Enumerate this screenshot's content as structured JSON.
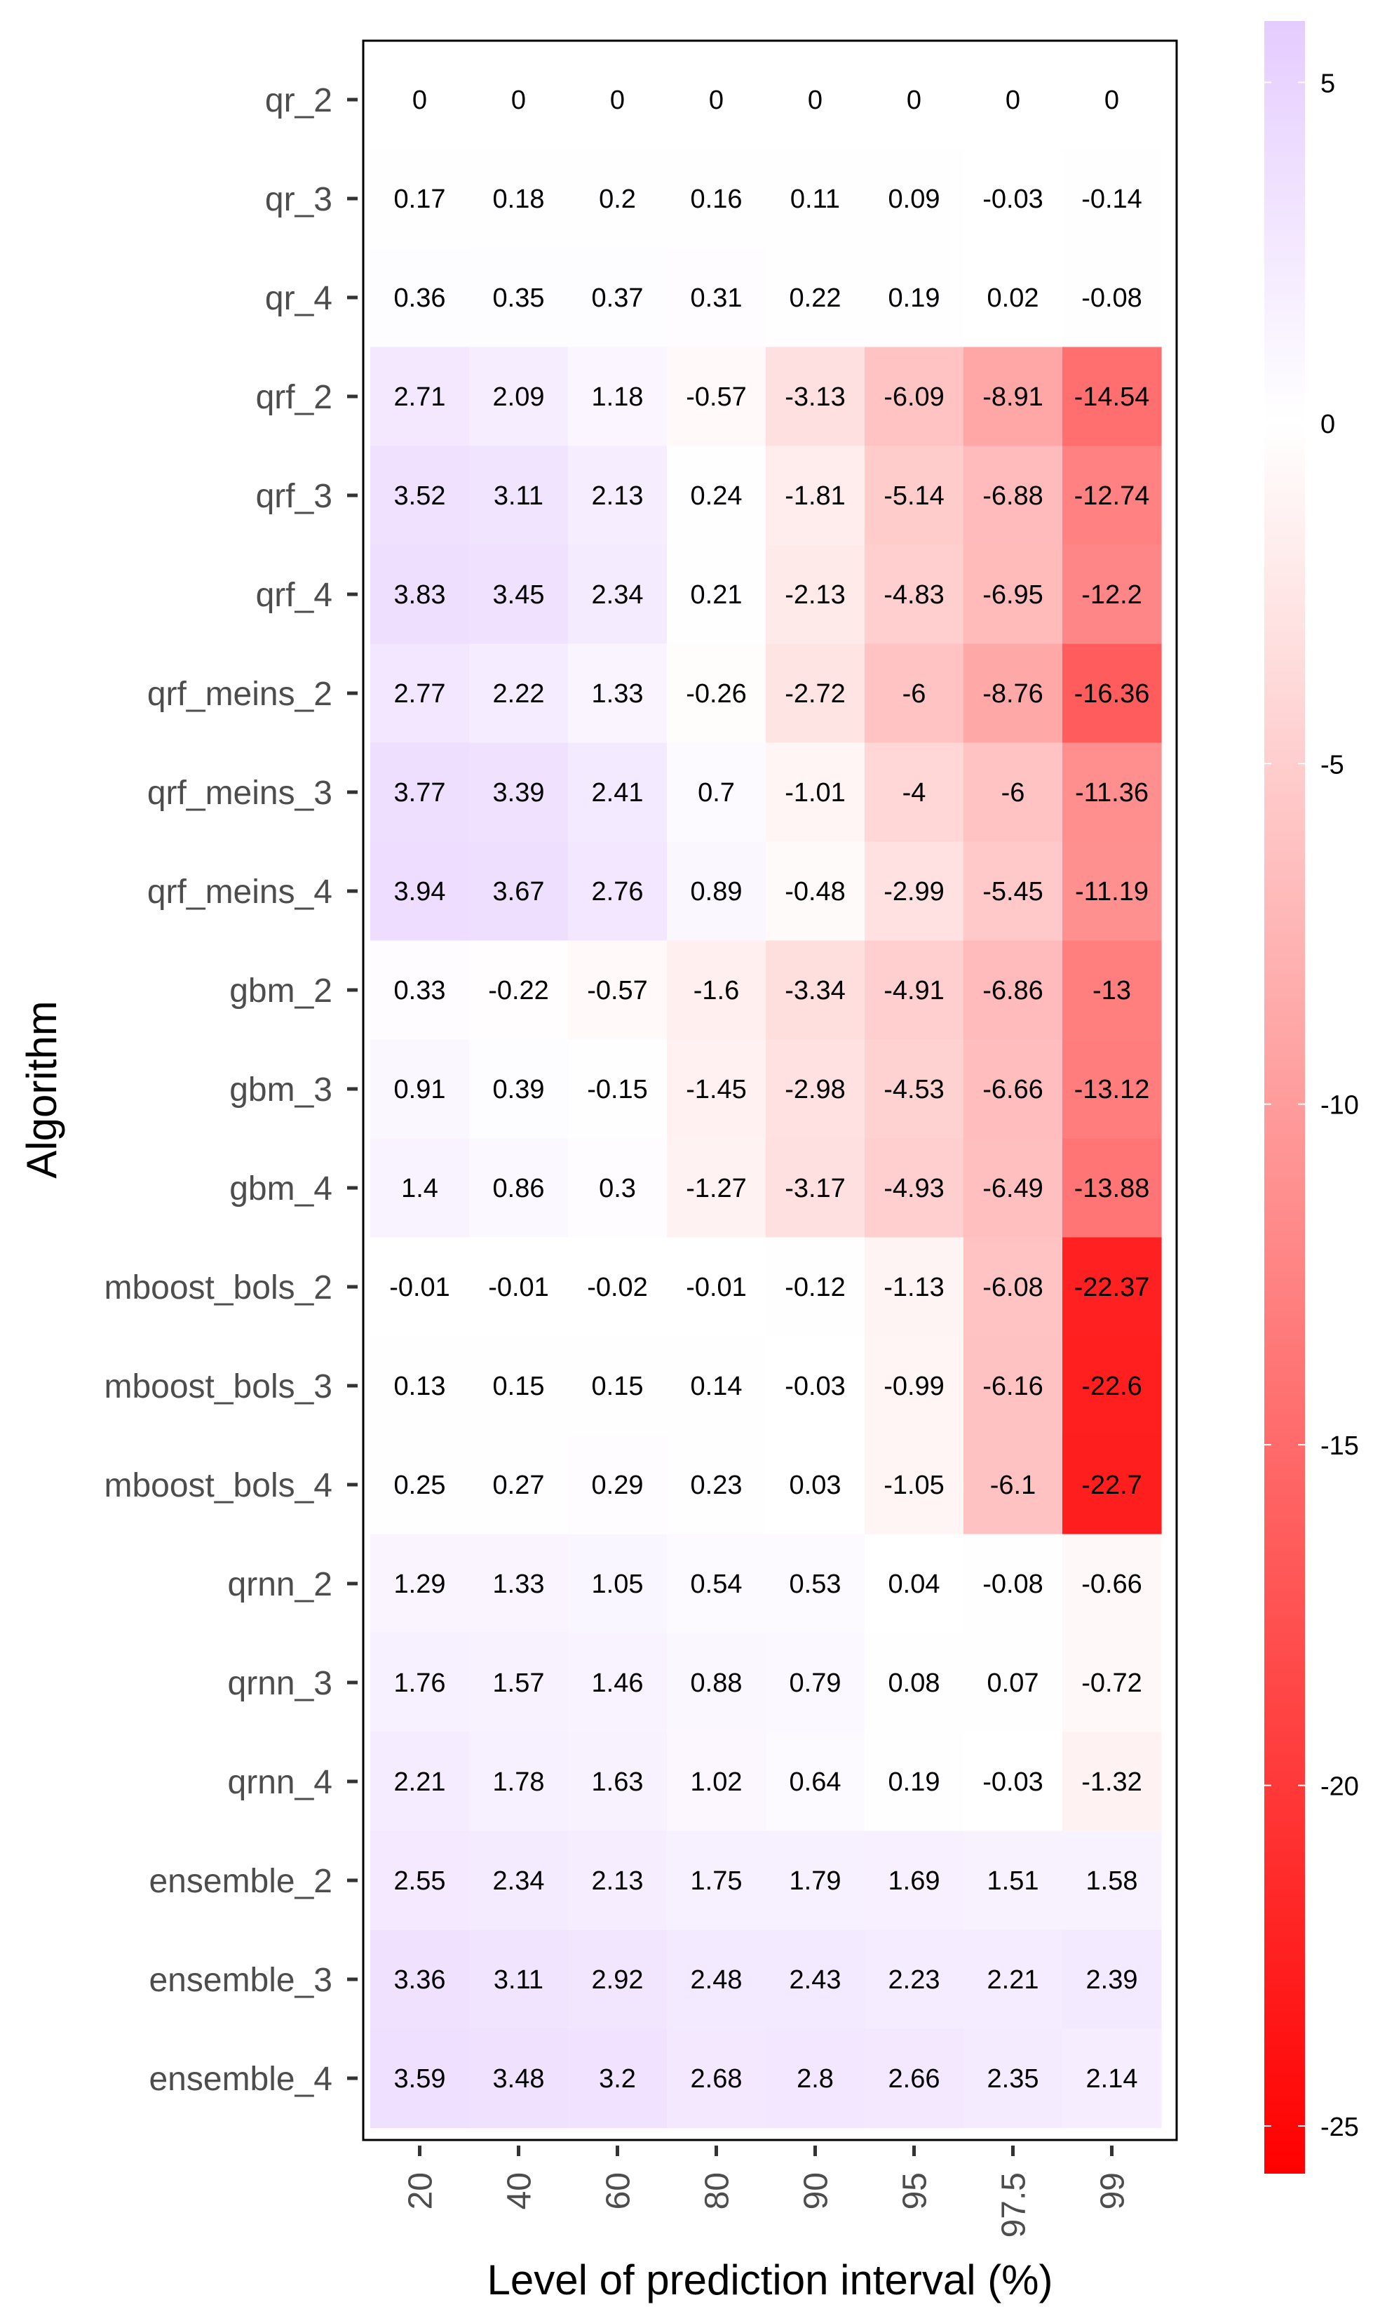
{
  "chart_data": {
    "type": "heatmap",
    "title": "",
    "xlabel": "Level of prediction interval (%)",
    "ylabel": "Algorithm",
    "x": [
      "20",
      "40",
      "60",
      "80",
      "90",
      "95",
      "97.5",
      "99"
    ],
    "y": [
      "qr_2",
      "qr_3",
      "qr_4",
      "qrf_2",
      "qrf_3",
      "qrf_4",
      "qrf_meins_2",
      "qrf_meins_3",
      "qrf_meins_4",
      "gbm_2",
      "gbm_3",
      "gbm_4",
      "mboost_bols_2",
      "mboost_bols_3",
      "mboost_bols_4",
      "qrnn_2",
      "qrnn_3",
      "qrnn_4",
      "ensemble_2",
      "ensemble_3",
      "ensemble_4"
    ],
    "values": [
      [
        0,
        0,
        0,
        0,
        0,
        0,
        0,
        0
      ],
      [
        0.17,
        0.18,
        0.2,
        0.16,
        0.11,
        0.09,
        -0.03,
        -0.14
      ],
      [
        0.36,
        0.35,
        0.37,
        0.31,
        0.22,
        0.19,
        0.02,
        -0.08
      ],
      [
        2.71,
        2.09,
        1.18,
        -0.57,
        -3.13,
        -6.09,
        -8.91,
        -14.54
      ],
      [
        3.52,
        3.11,
        2.13,
        0.24,
        -1.81,
        -5.14,
        -6.88,
        -12.74
      ],
      [
        3.83,
        3.45,
        2.34,
        0.21,
        -2.13,
        -4.83,
        -6.95,
        -12.2
      ],
      [
        2.77,
        2.22,
        1.33,
        -0.26,
        -2.72,
        -6,
        -8.76,
        -16.36
      ],
      [
        3.77,
        3.39,
        2.41,
        0.7,
        -1.01,
        -4,
        -6,
        -11.36
      ],
      [
        3.94,
        3.67,
        2.76,
        0.89,
        -0.48,
        -2.99,
        -5.45,
        -11.19
      ],
      [
        0.33,
        -0.22,
        -0.57,
        -1.6,
        -3.34,
        -4.91,
        -6.86,
        -13
      ],
      [
        0.91,
        0.39,
        -0.15,
        -1.45,
        -2.98,
        -4.53,
        -6.66,
        -13.12
      ],
      [
        1.4,
        0.86,
        0.3,
        -1.27,
        -3.17,
        -4.93,
        -6.49,
        -13.88
      ],
      [
        -0.01,
        -0.01,
        -0.02,
        -0.01,
        -0.12,
        -1.13,
        -6.08,
        -22.37
      ],
      [
        0.13,
        0.15,
        0.15,
        0.14,
        -0.03,
        -0.99,
        -6.16,
        -22.6
      ],
      [
        0.25,
        0.27,
        0.29,
        0.23,
        0.03,
        -1.05,
        -6.1,
        -22.7
      ],
      [
        1.29,
        1.33,
        1.05,
        0.54,
        0.53,
        0.04,
        -0.08,
        -0.66
      ],
      [
        1.76,
        1.57,
        1.46,
        0.88,
        0.79,
        0.08,
        0.07,
        -0.72
      ],
      [
        2.21,
        1.78,
        1.63,
        1.02,
        0.64,
        0.19,
        -0.03,
        -1.32
      ],
      [
        2.55,
        2.34,
        2.13,
        1.75,
        1.79,
        1.69,
        1.51,
        1.58
      ],
      [
        3.36,
        3.11,
        2.92,
        2.48,
        2.43,
        2.23,
        2.21,
        2.39
      ],
      [
        3.59,
        3.48,
        3.2,
        2.68,
        2.8,
        2.66,
        2.35,
        2.14
      ]
    ],
    "colorbar": {
      "ticks": [
        5,
        0,
        -5,
        -10,
        -15,
        -20,
        -25
      ],
      "range": [
        -25.7,
        5.9
      ],
      "low_color": "#ff0000",
      "mid_color": "#ffffff",
      "high_color": "#e5ccff"
    },
    "legend": "right",
    "grid": false
  }
}
